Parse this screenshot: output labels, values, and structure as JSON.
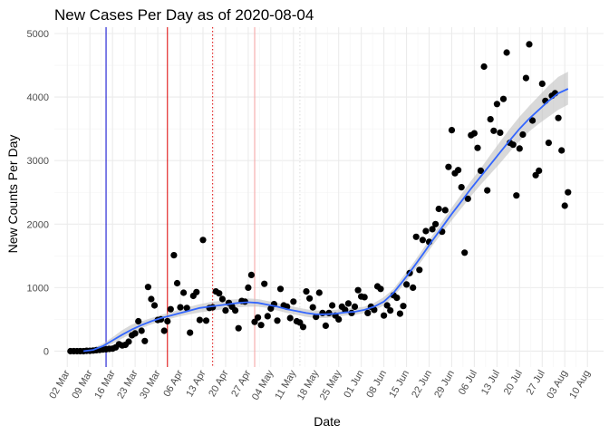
{
  "chart_data": {
    "type": "scatter",
    "title": "New Cases Per Day as of 2020-08-04",
    "xlabel": "Date",
    "ylabel": "New Counts Per Day",
    "x_unit": "days since 02 Mar 2020",
    "xlim": [
      -4,
      166
    ],
    "ylim": [
      -250,
      5100
    ],
    "y_ticks": [
      0,
      1000,
      2000,
      3000,
      4000,
      5000
    ],
    "x_ticks": [
      {
        "day": 0,
        "label": "02 Mar"
      },
      {
        "day": 7,
        "label": "09 Mar"
      },
      {
        "day": 14,
        "label": "16 Mar"
      },
      {
        "day": 21,
        "label": "23 Mar"
      },
      {
        "day": 28,
        "label": "30 Mar"
      },
      {
        "day": 35,
        "label": "06 Apr"
      },
      {
        "day": 42,
        "label": "13 Apr"
      },
      {
        "day": 49,
        "label": "20 Apr"
      },
      {
        "day": 56,
        "label": "27 Apr"
      },
      {
        "day": 63,
        "label": "04 May"
      },
      {
        "day": 70,
        "label": "11 May"
      },
      {
        "day": 77,
        "label": "18 May"
      },
      {
        "day": 84,
        "label": "25 May"
      },
      {
        "day": 91,
        "label": "01 Jun"
      },
      {
        "day": 98,
        "label": "08 Jun"
      },
      {
        "day": 105,
        "label": "15 Jun"
      },
      {
        "day": 112,
        "label": "22 Jun"
      },
      {
        "day": 119,
        "label": "29 Jun"
      },
      {
        "day": 126,
        "label": "06 Jul"
      },
      {
        "day": 133,
        "label": "13 Jul"
      },
      {
        "day": 140,
        "label": "20 Jul"
      },
      {
        "day": 147,
        "label": "27 Jul"
      },
      {
        "day": 154,
        "label": "03 Aug"
      },
      {
        "day": 161,
        "label": "10 Aug"
      }
    ],
    "grid": true,
    "vertical_lines": [
      {
        "day": 12,
        "color": "#0000cd",
        "style": "solid"
      },
      {
        "day": 31,
        "color": "#dd0000",
        "style": "solid"
      },
      {
        "day": 45,
        "color": "#dd0000",
        "style": "dotted"
      },
      {
        "day": 58,
        "color": "#f4a0a0",
        "style": "solid"
      },
      {
        "day": 72,
        "color": "#d9d9d9",
        "style": "dotted"
      }
    ],
    "points": {
      "color": "#000000",
      "x": [
        1,
        2,
        3,
        4,
        5,
        6,
        7,
        8,
        9,
        10,
        11,
        12,
        13,
        14,
        15,
        16,
        17,
        18,
        19,
        20,
        21,
        22,
        23,
        24,
        25,
        26,
        27,
        28,
        29,
        30,
        31,
        32,
        33,
        34,
        35,
        36,
        37,
        38,
        39,
        40,
        41,
        42,
        43,
        44,
        45,
        46,
        47,
        48,
        49,
        50,
        51,
        52,
        53,
        54,
        55,
        56,
        57,
        58,
        59,
        60,
        61,
        62,
        63,
        64,
        65,
        66,
        67,
        68,
        69,
        70,
        71,
        72,
        73,
        74,
        75,
        76,
        77,
        78,
        79,
        80,
        81,
        82,
        83,
        84,
        85,
        86,
        87,
        88,
        89,
        90,
        91,
        92,
        93,
        94,
        95,
        96,
        97,
        98,
        99,
        100,
        101,
        102,
        103,
        104,
        105,
        106,
        107,
        108,
        109,
        110,
        111,
        112,
        113,
        114,
        115,
        116,
        117,
        118,
        119,
        120,
        121,
        122,
        123,
        124,
        125,
        126,
        127,
        128,
        129,
        130,
        131,
        132,
        133,
        134,
        135,
        136,
        137,
        138,
        139,
        140,
        141,
        142,
        143,
        144,
        145,
        146,
        147,
        148,
        149,
        150,
        151,
        152,
        153,
        154,
        155
      ],
      "y": [
        0,
        0,
        0,
        0,
        0,
        5,
        5,
        10,
        15,
        20,
        25,
        30,
        35,
        40,
        60,
        110,
        90,
        100,
        150,
        250,
        280,
        470,
        320,
        160,
        1010,
        820,
        720,
        490,
        500,
        320,
        470,
        660,
        1510,
        1070,
        690,
        920,
        680,
        290,
        870,
        930,
        490,
        1750,
        480,
        680,
        690,
        940,
        910,
        820,
        640,
        760,
        700,
        640,
        360,
        790,
        780,
        1000,
        1200,
        460,
        530,
        410,
        1060,
        550,
        670,
        740,
        480,
        980,
        720,
        700,
        520,
        780,
        470,
        450,
        380,
        940,
        830,
        690,
        540,
        920,
        600,
        400,
        600,
        720,
        560,
        500,
        700,
        650,
        750,
        600,
        700,
        960,
        860,
        850,
        600,
        700,
        650,
        1020,
        980,
        560,
        720,
        640,
        880,
        840,
        590,
        710,
        1050,
        1230,
        1000,
        1800,
        1280,
        1750,
        1890,
        1720,
        1920,
        2000,
        2240,
        1880,
        2220,
        2900,
        3480,
        2800,
        2850,
        2580,
        1550,
        2400,
        3400,
        3430,
        3200,
        2840,
        4480,
        2530,
        3650,
        3470,
        3890,
        3440,
        3970,
        4700,
        3280,
        3250,
        2450,
        3190,
        3410,
        4300,
        4830,
        3630,
        2770,
        2840,
        4210,
        3940,
        3280,
        4020,
        4060,
        3670,
        3160,
        2290,
        2500
      ]
    },
    "smooth_line": {
      "color": "#3366ff",
      "ribbon_color": "#bfbfbf",
      "x": [
        5,
        8,
        11,
        14,
        17,
        20,
        23,
        26,
        29,
        32,
        35,
        38,
        41,
        44,
        47,
        50,
        53,
        56,
        59,
        62,
        65,
        68,
        71,
        74,
        77,
        80,
        83,
        86,
        89,
        92,
        95,
        98,
        101,
        104,
        107,
        110,
        113,
        116,
        119,
        122,
        125,
        128,
        131,
        134,
        137,
        140,
        143,
        146,
        149,
        152,
        155
      ],
      "y": [
        0,
        20,
        80,
        170,
        260,
        340,
        410,
        470,
        520,
        560,
        600,
        640,
        680,
        700,
        720,
        740,
        760,
        770,
        760,
        730,
        700,
        660,
        630,
        600,
        580,
        580,
        590,
        610,
        620,
        650,
        700,
        780,
        920,
        1110,
        1310,
        1520,
        1740,
        1950,
        2160,
        2360,
        2560,
        2750,
        2940,
        3130,
        3320,
        3500,
        3660,
        3800,
        3940,
        4060,
        4130
      ],
      "lower": [
        0,
        0,
        40,
        120,
        200,
        280,
        360,
        420,
        470,
        510,
        550,
        580,
        610,
        630,
        650,
        670,
        690,
        700,
        700,
        680,
        640,
        600,
        570,
        540,
        520,
        520,
        540,
        560,
        570,
        600,
        640,
        720,
        860,
        1040,
        1240,
        1440,
        1660,
        1860,
        2060,
        2250,
        2440,
        2620,
        2790,
        2960,
        3140,
        3310,
        3460,
        3580,
        3690,
        3800,
        3880
      ],
      "upper": [
        0,
        50,
        120,
        220,
        330,
        420,
        470,
        520,
        570,
        610,
        660,
        700,
        740,
        770,
        790,
        810,
        820,
        830,
        820,
        790,
        760,
        720,
        690,
        660,
        640,
        640,
        650,
        670,
        680,
        700,
        760,
        850,
        980,
        1180,
        1380,
        1600,
        1820,
        2040,
        2260,
        2470,
        2680,
        2880,
        3090,
        3300,
        3500,
        3690,
        3860,
        4020,
        4180,
        4320,
        4400
      ]
    }
  }
}
